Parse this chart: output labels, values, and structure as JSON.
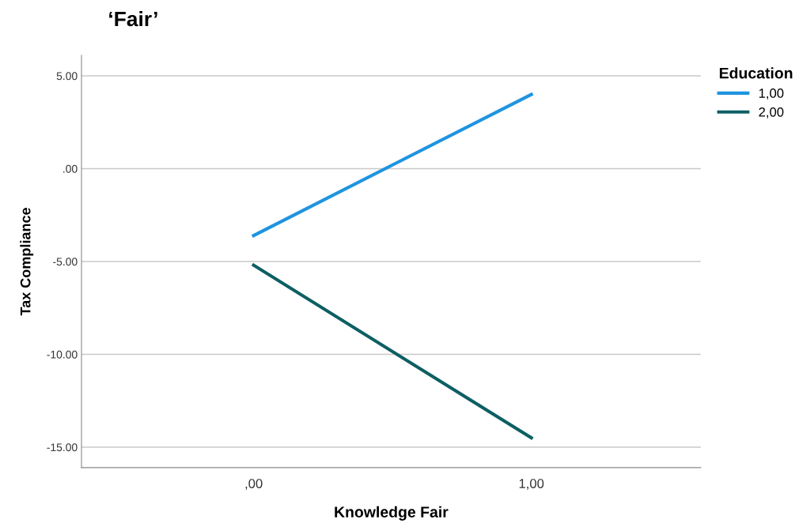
{
  "chart_data": {
    "type": "line",
    "title": "‘Fair’",
    "xlabel": "Knowledge Fair",
    "ylabel": "Tax Compliance",
    "legend_title": "Education",
    "categories": [
      ",00",
      "1,00"
    ],
    "series": [
      {
        "name": "1,00",
        "color": "#1f94e0",
        "values": [
          -3.6,
          4.0
        ]
      },
      {
        "name": "2,00",
        "color": "#0d5f63",
        "values": [
          -5.2,
          -14.5
        ]
      }
    ],
    "ylim": [
      -16.1,
      6.1
    ],
    "yticks": [
      {
        "value": -15,
        "label": "-15.00"
      },
      {
        "value": -10,
        "label": "-10.00"
      },
      {
        "value": -5,
        "label": "-5.00"
      },
      {
        "value": 0,
        "label": ".00"
      },
      {
        "value": 5,
        "label": "5.00"
      }
    ],
    "grid": "y",
    "legend": "top right",
    "marker": "none",
    "line_style": "solid"
  }
}
